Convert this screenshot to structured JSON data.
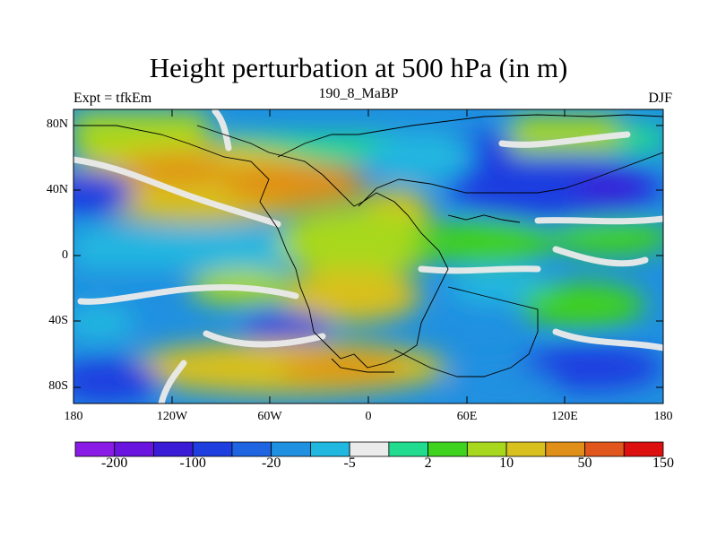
{
  "title": "Height perturbation at 500 hPa (in m)",
  "left_subtitle": "Expt = tfkEm",
  "center_subtitle": "190_8_MaBP",
  "right_subtitle": "DJF",
  "lat_labels": [
    "80N",
    "40N",
    "0",
    "40S",
    "80S"
  ],
  "lon_labels": [
    "180",
    "120W",
    "60W",
    "0",
    "60E",
    "120E",
    "180"
  ],
  "colorbar": {
    "colors": [
      "#8a1be6",
      "#6a14e0",
      "#3a1bd6",
      "#1f3ee0",
      "#1f64e0",
      "#2090e0",
      "#20b8e0",
      "#ebebeb",
      "#21dc8e",
      "#3fd21f",
      "#a8d81e",
      "#d8c01e",
      "#e09018",
      "#e0561c",
      "#dd1010"
    ],
    "labels": [
      "-200",
      "-100",
      "-20",
      "-5",
      "2",
      "10",
      "50",
      "150"
    ]
  }
}
